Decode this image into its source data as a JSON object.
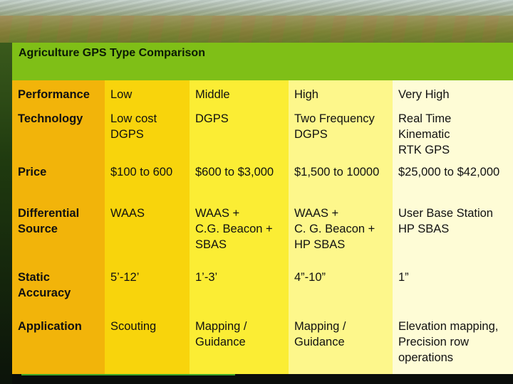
{
  "title": "Agriculture GPS Type Comparison",
  "rows": [
    {
      "label": "Performance",
      "values": [
        "Low",
        "Middle",
        "High",
        "Very High"
      ]
    },
    {
      "label": "Technology",
      "values": [
        "Low cost\nDGPS",
        "DGPS",
        "Two Frequency\nDGPS",
        "Real Time\nKinematic\nRTK GPS"
      ]
    },
    {
      "label": "Price",
      "values": [
        "$100 to 600",
        "$600 to $3,000",
        "$1,500 to 10000",
        "$25,000 to $42,000"
      ]
    },
    {
      "label": "Differential\nSource",
      "values": [
        "WAAS",
        "WAAS +\nC.G. Beacon +\nSBAS",
        "WAAS +\nC. G. Beacon +\nHP SBAS",
        "User Base Station\nHP SBAS"
      ]
    },
    {
      "label": "Static\nAccuracy",
      "values": [
        "5’-12’",
        "1’-3’",
        "4”-10”",
        "1”"
      ]
    },
    {
      "label": "Application",
      "values": [
        "Scouting",
        "Mapping /\nGuidance",
        "Mapping /\nGuidance",
        "Elevation mapping,\nPrecision row\noperations"
      ]
    }
  ],
  "colors": {
    "header_bar": "#7fbf17",
    "label_col": "#f2b40a",
    "col_low": "#f8d40c",
    "col_middle": "#fbed34",
    "col_high": "#fdf78b",
    "col_very_high": "#fefcd6"
  }
}
